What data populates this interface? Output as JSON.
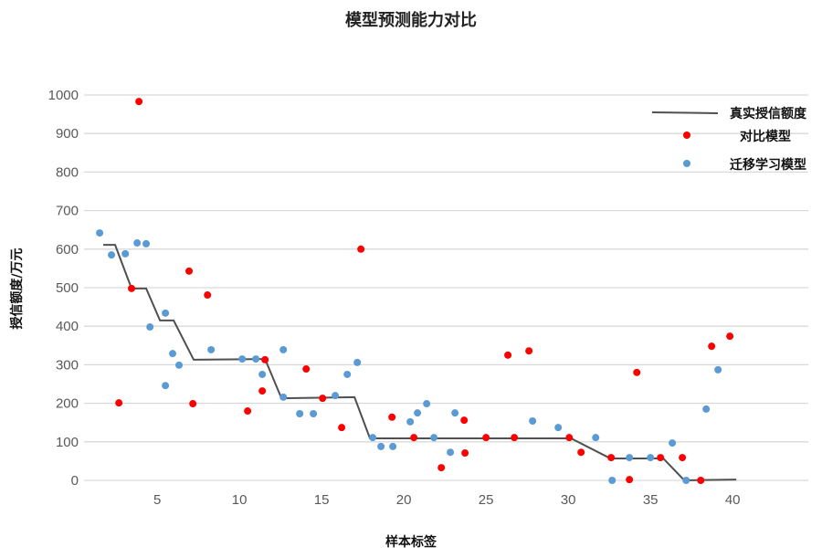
{
  "chart_data": {
    "type": "scatter",
    "title": "模型预测能力对比",
    "xlabel": "样本标签",
    "ylabel": "授信额度/万元",
    "xlim": [
      0.55,
      44.6
    ],
    "ylim": [
      0,
      1000
    ],
    "x_ticks": [
      5,
      10,
      15,
      20,
      25,
      30,
      35,
      40
    ],
    "y_ticks": [
      0,
      100,
      200,
      300,
      400,
      500,
      600,
      700,
      800,
      900,
      1000
    ],
    "grid": "horizontal",
    "legend_position": "top-right",
    "series": [
      {
        "name": "真实授信额度",
        "kind": "line",
        "color": "#505050",
        "points": [
          [
            1.72,
            611
          ],
          [
            2.44,
            611
          ],
          [
            3.44,
            498
          ],
          [
            4.33,
            498
          ],
          [
            5.17,
            415
          ],
          [
            6.0,
            415
          ],
          [
            7.22,
            313
          ],
          [
            11.56,
            315
          ],
          [
            12.56,
            213
          ],
          [
            17.0,
            216
          ],
          [
            17.94,
            109
          ],
          [
            30.17,
            109
          ],
          [
            32.56,
            57
          ],
          [
            35.78,
            57
          ],
          [
            37.06,
            0
          ],
          [
            40.22,
            2
          ]
        ]
      },
      {
        "name": "对比模型",
        "kind": "scatter",
        "color": "#ff0000",
        "points": [
          [
            2.67,
            201
          ],
          [
            3.44,
            498
          ],
          [
            3.89,
            983
          ],
          [
            6.94,
            543
          ],
          [
            7.17,
            199
          ],
          [
            8.06,
            481
          ],
          [
            10.5,
            180
          ],
          [
            11.39,
            232
          ],
          [
            11.56,
            313
          ],
          [
            14.06,
            289
          ],
          [
            15.06,
            213
          ],
          [
            16.22,
            137
          ],
          [
            17.39,
            600
          ],
          [
            19.28,
            164
          ],
          [
            20.61,
            111
          ],
          [
            22.28,
            33
          ],
          [
            23.67,
            156
          ],
          [
            23.72,
            71
          ],
          [
            25.0,
            111
          ],
          [
            26.33,
            325
          ],
          [
            26.72,
            111
          ],
          [
            27.61,
            336
          ],
          [
            30.06,
            111
          ],
          [
            30.78,
            73
          ],
          [
            32.61,
            59
          ],
          [
            33.72,
            2
          ],
          [
            34.17,
            280
          ],
          [
            35.61,
            59
          ],
          [
            36.94,
            59
          ],
          [
            38.06,
            0
          ],
          [
            38.72,
            348
          ],
          [
            39.83,
            374
          ]
        ]
      },
      {
        "name": "迁移学习模型",
        "kind": "scatter",
        "color": "#5b9bd5",
        "points": [
          [
            1.5,
            642
          ],
          [
            2.22,
            585
          ],
          [
            3.06,
            588
          ],
          [
            3.78,
            616
          ],
          [
            4.33,
            614
          ],
          [
            4.56,
            398
          ],
          [
            5.5,
            434
          ],
          [
            5.5,
            246
          ],
          [
            5.94,
            329
          ],
          [
            6.33,
            299
          ],
          [
            8.28,
            339
          ],
          [
            10.17,
            315
          ],
          [
            11.0,
            315
          ],
          [
            11.39,
            275
          ],
          [
            12.67,
            339
          ],
          [
            12.67,
            216
          ],
          [
            13.67,
            173
          ],
          [
            14.5,
            173
          ],
          [
            15.83,
            220
          ],
          [
            16.56,
            275
          ],
          [
            17.17,
            306
          ],
          [
            18.11,
            111
          ],
          [
            18.61,
            88
          ],
          [
            19.33,
            88
          ],
          [
            20.39,
            152
          ],
          [
            20.83,
            175
          ],
          [
            21.39,
            199
          ],
          [
            21.83,
            111
          ],
          [
            22.83,
            73
          ],
          [
            23.11,
            175
          ],
          [
            27.83,
            154
          ],
          [
            29.39,
            137
          ],
          [
            31.67,
            111
          ],
          [
            32.67,
            0
          ],
          [
            33.72,
            59
          ],
          [
            35.0,
            59
          ],
          [
            36.33,
            97
          ],
          [
            37.17,
            0
          ],
          [
            38.39,
            185
          ],
          [
            39.11,
            287
          ]
        ]
      }
    ]
  }
}
